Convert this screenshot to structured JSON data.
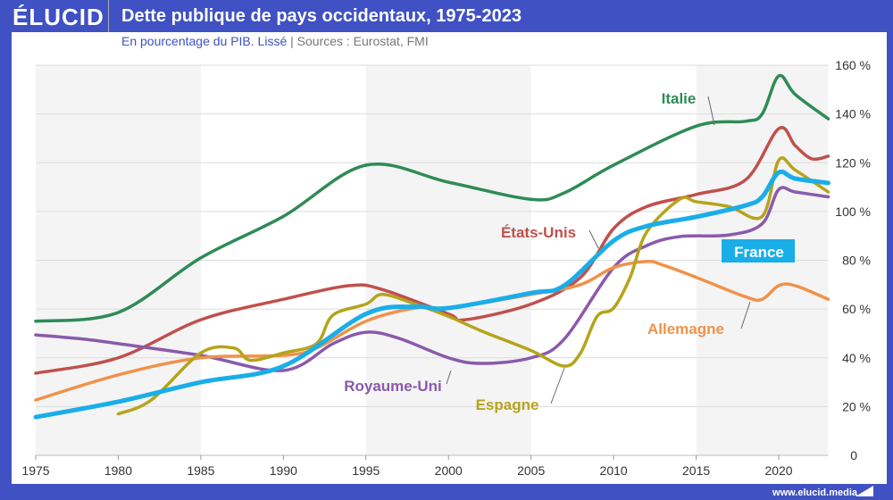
{
  "header": {
    "logo": "ÉLUCID",
    "title": "Dette publique de pays occidentaux, 1975-2023",
    "subtitle": "En pourcentage du PIB. Lissé",
    "separator": "|",
    "sources": "Sources : Eurostat, FMI"
  },
  "footer": {
    "url": "www.elucid.media"
  },
  "colors": {
    "frame": "#3f51c3",
    "band": "#f4f4f4"
  },
  "chart_data": {
    "type": "line",
    "xlim": [
      1975,
      2023
    ],
    "ylim": [
      0,
      160
    ],
    "x_ticks": [
      "1975",
      "1980",
      "1985",
      "1990",
      "1995",
      "2000",
      "2005",
      "2010",
      "2015",
      "2020"
    ],
    "y_ticks": [
      "0",
      "20 %",
      "40 %",
      "60 %",
      "80 %",
      "100 %",
      "120 %",
      "140 %",
      "160 %"
    ],
    "grid": true,
    "series": [
      {
        "name": "Italie",
        "color": "#2e8b57",
        "points": [
          [
            1975,
            55
          ],
          [
            1980,
            58.6
          ],
          [
            1985,
            81
          ],
          [
            1990,
            98
          ],
          [
            1995,
            119
          ],
          [
            2000,
            112
          ],
          [
            2005,
            105
          ],
          [
            2007,
            107.6
          ],
          [
            2010,
            119
          ],
          [
            2015,
            135
          ],
          [
            2018,
            137
          ],
          [
            2019,
            140
          ],
          [
            2020,
            155.6
          ],
          [
            2021,
            148
          ],
          [
            2023,
            138
          ]
        ]
      },
      {
        "name": "États-Unis",
        "color": "#c0504d",
        "points": [
          [
            1975,
            33.7
          ],
          [
            1980,
            40
          ],
          [
            1985,
            55.6
          ],
          [
            1990,
            64
          ],
          [
            1994,
            69.6
          ],
          [
            1996,
            68
          ],
          [
            2000,
            58
          ],
          [
            2001,
            55.6
          ],
          [
            2005,
            62
          ],
          [
            2008,
            73
          ],
          [
            2010,
            93
          ],
          [
            2012,
            102
          ],
          [
            2015,
            107
          ],
          [
            2018,
            113
          ],
          [
            2020,
            134
          ],
          [
            2021,
            127
          ],
          [
            2022,
            121.6
          ],
          [
            2023,
            122.7
          ]
        ]
      },
      {
        "name": "Royaume-Uni",
        "color": "#8a5aab",
        "points": [
          [
            1975,
            49.4
          ],
          [
            1978,
            47.6
          ],
          [
            1980,
            45.8
          ],
          [
            1985,
            41
          ],
          [
            1990,
            34.8
          ],
          [
            1993,
            45.8
          ],
          [
            1995,
            50.5
          ],
          [
            1997,
            48
          ],
          [
            2000,
            40
          ],
          [
            2002,
            37.7
          ],
          [
            2005,
            40
          ],
          [
            2007,
            47.6
          ],
          [
            2010,
            77
          ],
          [
            2012,
            86
          ],
          [
            2014,
            89.7
          ],
          [
            2017,
            90.4
          ],
          [
            2019,
            95
          ],
          [
            2020,
            109
          ],
          [
            2021,
            108
          ],
          [
            2023,
            106
          ]
        ]
      },
      {
        "name": "Allemagne",
        "color": "#f0924a",
        "points": [
          [
            1975,
            22.7
          ],
          [
            1980,
            33
          ],
          [
            1985,
            40
          ],
          [
            1990,
            41
          ],
          [
            1992,
            44
          ],
          [
            1995,
            55
          ],
          [
            1998,
            60.4
          ],
          [
            2000,
            60.4
          ],
          [
            2005,
            66
          ],
          [
            2008,
            70
          ],
          [
            2010,
            77
          ],
          [
            2012,
            79.5
          ],
          [
            2013,
            78
          ],
          [
            2015,
            73
          ],
          [
            2018,
            65
          ],
          [
            2019,
            64
          ],
          [
            2020,
            69.6
          ],
          [
            2021,
            69.6
          ],
          [
            2023,
            64
          ]
        ]
      },
      {
        "name": "Espagne",
        "color": "#b5a41a",
        "points": [
          [
            1980,
            17
          ],
          [
            1982,
            22.7
          ],
          [
            1985,
            42
          ],
          [
            1987,
            44
          ],
          [
            1988,
            39
          ],
          [
            1990,
            42
          ],
          [
            1992,
            45.8
          ],
          [
            1993,
            57.5
          ],
          [
            1995,
            62
          ],
          [
            1996,
            66
          ],
          [
            1998,
            62
          ],
          [
            2000,
            57
          ],
          [
            2002,
            51
          ],
          [
            2005,
            43
          ],
          [
            2007,
            36.6
          ],
          [
            2008,
            42
          ],
          [
            2009,
            57
          ],
          [
            2010,
            60.4
          ],
          [
            2011,
            73
          ],
          [
            2012,
            91.5
          ],
          [
            2014,
            105
          ],
          [
            2015,
            104
          ],
          [
            2017,
            102
          ],
          [
            2019,
            98
          ],
          [
            2020,
            121
          ],
          [
            2021,
            117
          ],
          [
            2023,
            108
          ]
        ]
      },
      {
        "name": "France",
        "color": "#1aaee8",
        "points": [
          [
            1975,
            15.7
          ],
          [
            1980,
            22
          ],
          [
            1985,
            30
          ],
          [
            1990,
            36.6
          ],
          [
            1995,
            58
          ],
          [
            1998,
            61
          ],
          [
            2000,
            60.4
          ],
          [
            2005,
            66.6
          ],
          [
            2007,
            69.6
          ],
          [
            2010,
            88
          ],
          [
            2012,
            94
          ],
          [
            2015,
            97.8
          ],
          [
            2018,
            102.5
          ],
          [
            2019,
            106
          ],
          [
            2020,
            116
          ],
          [
            2021,
            113.5
          ],
          [
            2023,
            111.7
          ]
        ]
      }
    ]
  }
}
